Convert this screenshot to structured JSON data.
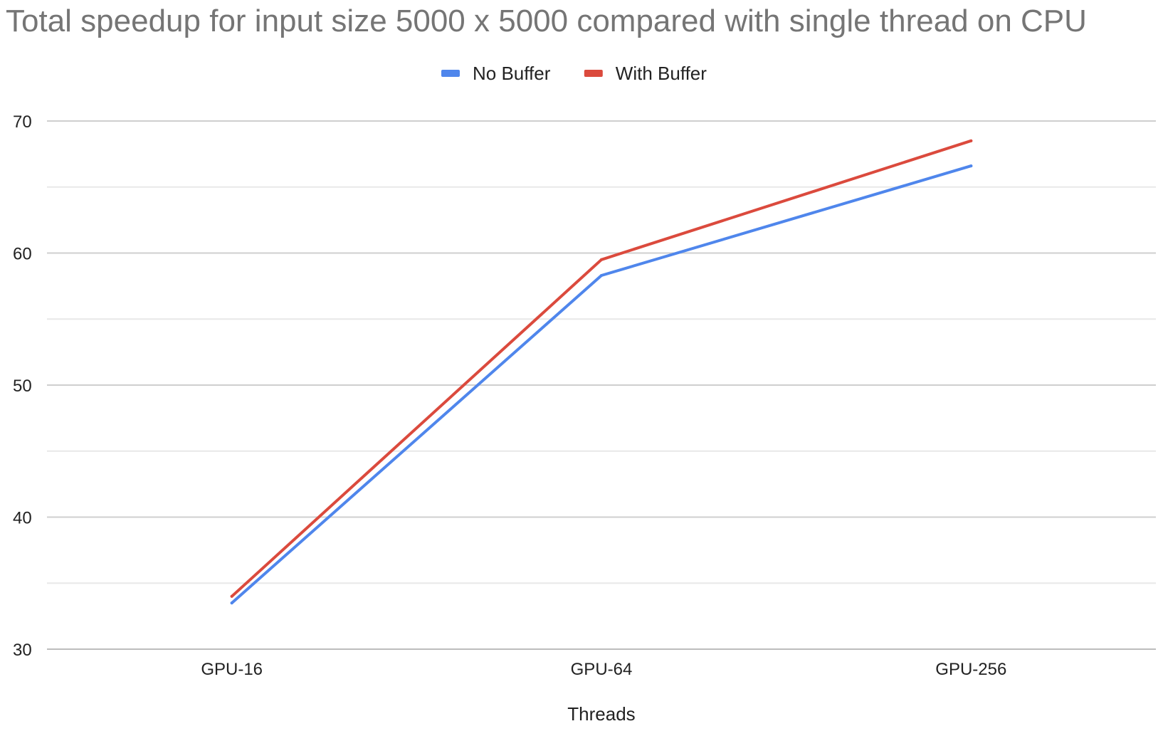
{
  "chart_data": {
    "type": "line",
    "title": "Total speedup for input size 5000 x 5000 compared with single thread on CPU",
    "xlabel": "Threads",
    "ylabel": "",
    "categories": [
      "GPU-16",
      "GPU-64",
      "GPU-256"
    ],
    "series": [
      {
        "name": "No Buffer",
        "color": "#4f86ec",
        "values": [
          33.5,
          58.3,
          66.6
        ]
      },
      {
        "name": "With Buffer",
        "color": "#db4a3d",
        "values": [
          34.0,
          59.5,
          68.5
        ]
      }
    ],
    "ylim": [
      30,
      70
    ],
    "yticks": [
      30,
      40,
      50,
      60,
      70
    ],
    "yticks_labels": [
      "30",
      "40",
      "50",
      "60",
      "70"
    ],
    "minor_gridlines": [
      35,
      45,
      55,
      65
    ],
    "grid": true,
    "legend_position": "top-center"
  }
}
